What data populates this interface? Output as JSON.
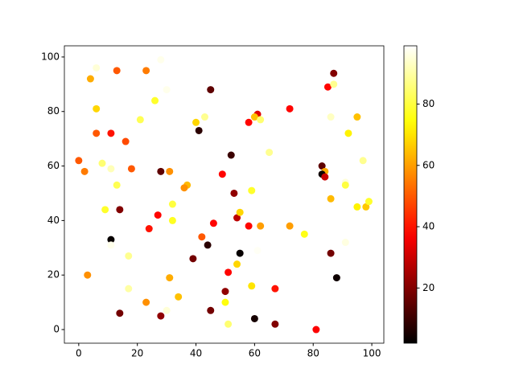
{
  "chart_data": {
    "type": "scatter",
    "cmap": "hot",
    "x": [
      0,
      2,
      4,
      6,
      6,
      6,
      8,
      11,
      11,
      13,
      13,
      9,
      14,
      16,
      18,
      11,
      11,
      3,
      17,
      17,
      14,
      23,
      28,
      23,
      28,
      26,
      21,
      30,
      28,
      31,
      27,
      24,
      32,
      32,
      37,
      36,
      31,
      34,
      30,
      40,
      43,
      41,
      45,
      42,
      39,
      44,
      46,
      45,
      49,
      52,
      53,
      54,
      55,
      50,
      50,
      51,
      51,
      55,
      54,
      59,
      58,
      59,
      60,
      67,
      67,
      58,
      61,
      60,
      62,
      65,
      62,
      61,
      72,
      72,
      77,
      83,
      84,
      83,
      84,
      85,
      87,
      87,
      86,
      86,
      86,
      88,
      81,
      91,
      91,
      91,
      92,
      95,
      97,
      95,
      98,
      99
    ],
    "y": [
      62,
      58,
      92,
      96,
      81,
      72,
      61,
      59,
      72,
      95,
      53,
      44,
      44,
      69,
      59,
      33,
      31,
      20,
      27,
      15,
      6,
      10,
      5,
      95,
      99,
      84,
      77,
      88,
      58,
      58,
      42,
      37,
      46,
      40,
      53,
      52,
      19,
      12,
      7,
      76,
      78,
      73,
      88,
      34,
      26,
      31,
      39,
      7,
      57,
      64,
      50,
      41,
      43,
      14,
      10,
      21,
      2,
      28,
      24,
      51,
      38,
      16,
      4,
      2,
      15,
      76,
      79,
      78,
      77,
      65,
      38,
      29,
      81,
      38,
      35,
      60,
      58,
      57,
      56,
      89,
      94,
      90,
      78,
      48,
      28,
      19,
      0,
      54,
      53,
      32,
      72,
      78,
      62,
      45,
      45,
      47
    ],
    "c": [
      50,
      55,
      62,
      95,
      68,
      50,
      85,
      92,
      40,
      50,
      82,
      78,
      20,
      48,
      50,
      3,
      97,
      58,
      88,
      90,
      18,
      58,
      22,
      55,
      97,
      78,
      82,
      97,
      15,
      58,
      38,
      40,
      80,
      77,
      64,
      58,
      62,
      65,
      95,
      68,
      88,
      8,
      15,
      50,
      18,
      8,
      38,
      18,
      38,
      10,
      22,
      28,
      68,
      22,
      75,
      38,
      85,
      3,
      68,
      78,
      38,
      70,
      5,
      20,
      40,
      38,
      33,
      65,
      85,
      88,
      60,
      98,
      38,
      60,
      76,
      15,
      62,
      4,
      30,
      38,
      20,
      88,
      93,
      64,
      18,
      4,
      37,
      95,
      80,
      96,
      72,
      65,
      88,
      72,
      66,
      78
    ],
    "xlim": [
      -4.9,
      104.1
    ],
    "ylim": [
      -5,
      104.1
    ],
    "xticks": [
      0,
      20,
      40,
      60,
      80,
      100
    ],
    "yticks": [
      0,
      20,
      40,
      60,
      80,
      100
    ],
    "clim": [
      2,
      99
    ],
    "cticks": [
      20,
      40,
      60,
      80
    ]
  }
}
